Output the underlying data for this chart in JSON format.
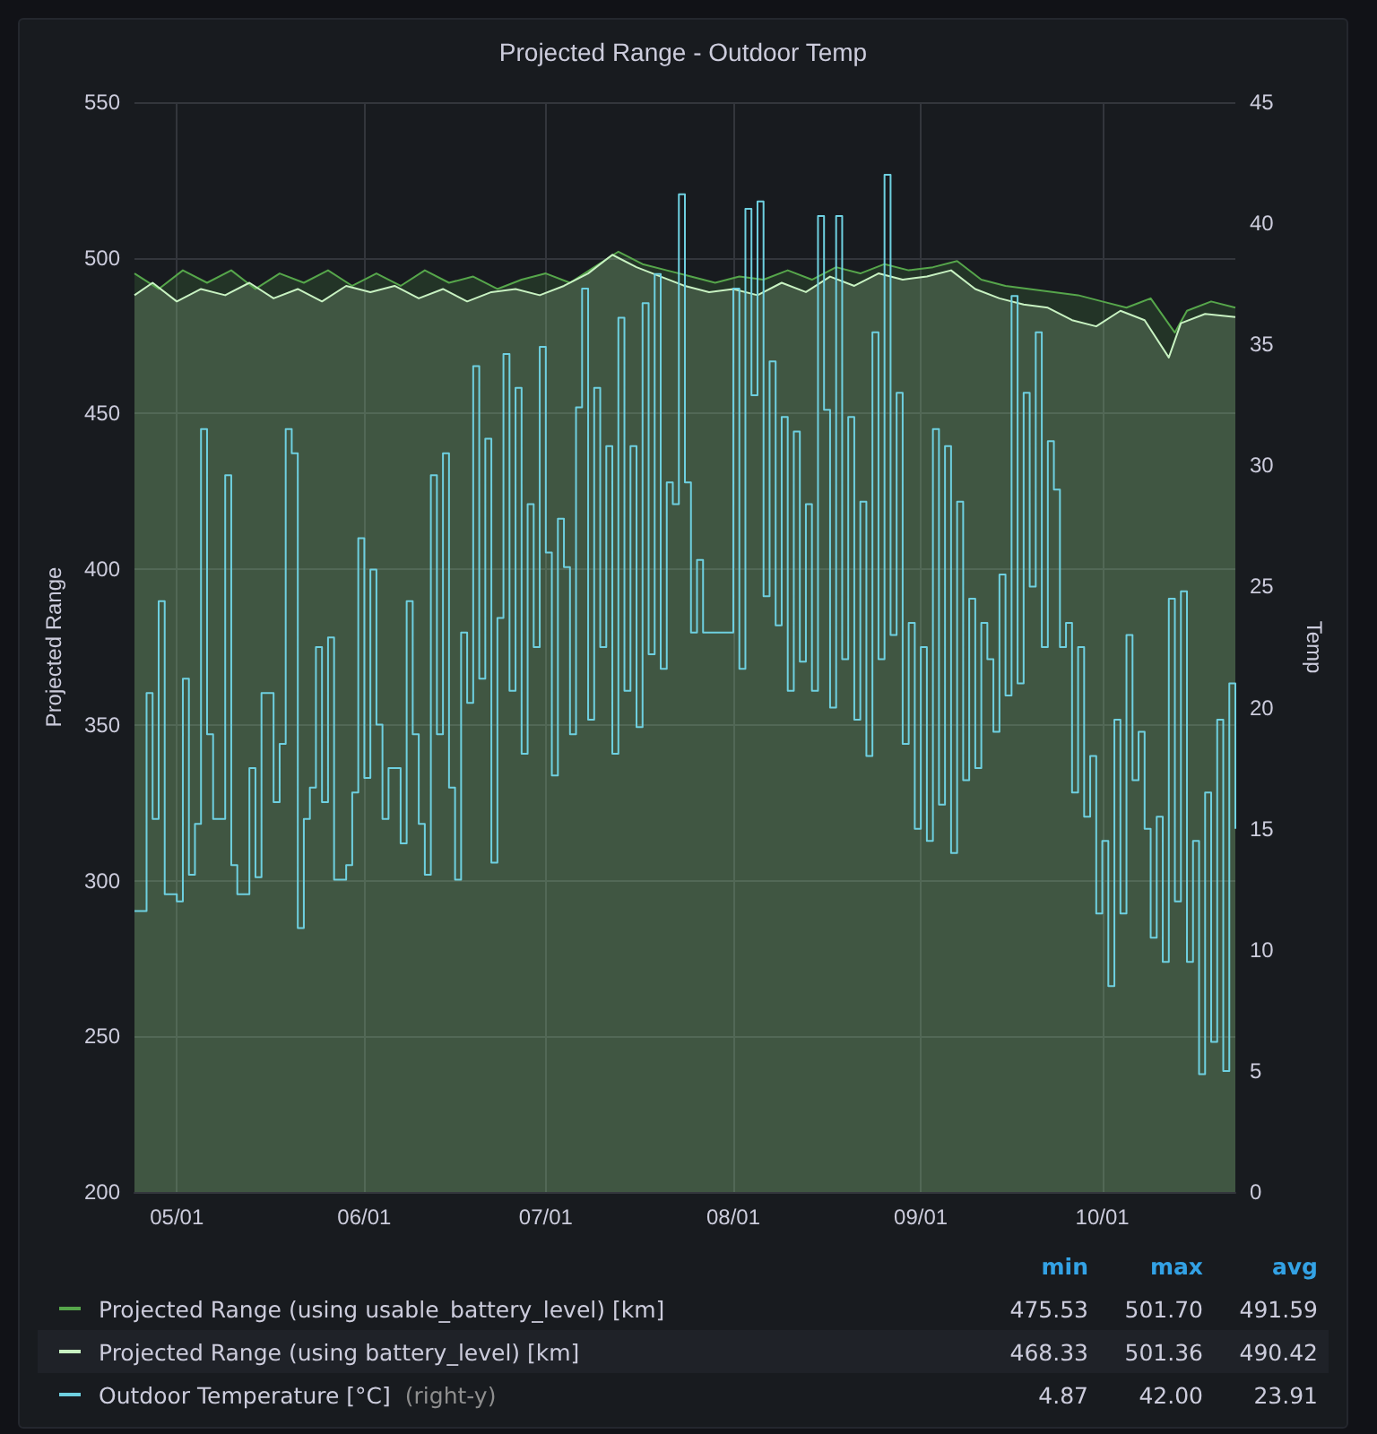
{
  "chart_data": {
    "type": "step",
    "title": "Projected Range - Outdoor Temp",
    "ylabel": "Projected Range",
    "y2label": "Temp",
    "xlim": [
      "--04-24",
      "--10-23"
    ],
    "xticks": [
      {
        "value": "--05-01",
        "label": "05/01"
      },
      {
        "value": "--06-01",
        "label": "06/01"
      },
      {
        "value": "--07-01",
        "label": "07/01"
      },
      {
        "value": "--08-01",
        "label": "08/01"
      },
      {
        "value": "--09-01",
        "label": "09/01"
      },
      {
        "value": "--10-01",
        "label": "10/01"
      }
    ],
    "ylim": [
      200,
      550
    ],
    "yticks": [
      200,
      250,
      300,
      350,
      400,
      450,
      500,
      550
    ],
    "y2lim": [
      0,
      45
    ],
    "y2ticks": [
      0,
      5,
      10,
      15,
      20,
      25,
      30,
      35,
      40,
      45
    ],
    "grid": true,
    "legend": "bottom",
    "annotations": [
      "min",
      "max",
      "avg",
      "475.53",
      "501.70",
      "491.59",
      "468.33",
      "501.36",
      "490.42",
      "4.87",
      "42.00",
      "23.91",
      "(right-y)"
    ],
    "series": [
      {
        "name": "Projected Range (using usable_battery_level) [km]",
        "type": "area",
        "color": "#56a64b",
        "x": [
          "--04-24",
          "--04-28",
          "--05-02",
          "--05-06",
          "--05-10",
          "--05-14",
          "--05-18",
          "--05-22",
          "--05-26",
          "--05-30",
          "--06-03",
          "--06-07",
          "--06-11",
          "--06-15",
          "--06-19",
          "--06-23",
          "--06-27",
          "--07-01",
          "--07-05",
          "--07-09",
          "--07-13",
          "--07-17",
          "--07-21",
          "--07-25",
          "--07-29",
          "--08-02",
          "--08-06",
          "--08-10",
          "--08-14",
          "--08-18",
          "--08-22",
          "--08-26",
          "--08-30",
          "--09-03",
          "--09-07",
          "--09-11",
          "--09-15",
          "--09-19",
          "--09-23",
          "--09-27",
          "--10-01",
          "--10-05",
          "--10-09",
          "--10-13",
          "--10-15",
          "--10-19",
          "--10-23"
        ],
        "values": [
          495,
          490,
          496,
          492,
          496,
          490,
          495,
          492,
          496,
          491,
          495,
          491,
          496,
          492,
          494,
          490,
          493,
          495,
          492,
          497,
          502,
          498,
          496,
          494,
          492,
          494,
          493,
          496,
          493,
          497,
          495,
          498,
          496,
          497,
          499,
          493,
          491,
          490,
          489,
          488,
          486,
          484,
          487,
          476,
          483,
          486,
          484
        ]
      },
      {
        "name": "Projected Range (using battery_level) [km]",
        "type": "area",
        "color": "#c8f2c2",
        "x": [
          "--04-24",
          "--04-27",
          "--05-01",
          "--05-05",
          "--05-09",
          "--05-13",
          "--05-17",
          "--05-21",
          "--05-25",
          "--05-29",
          "--06-02",
          "--06-06",
          "--06-10",
          "--06-14",
          "--06-18",
          "--06-22",
          "--06-26",
          "--06-30",
          "--07-04",
          "--07-08",
          "--07-12",
          "--07-16",
          "--07-20",
          "--07-24",
          "--07-28",
          "--08-01",
          "--08-05",
          "--08-09",
          "--08-13",
          "--08-17",
          "--08-21",
          "--08-25",
          "--08-29",
          "--09-02",
          "--09-06",
          "--09-10",
          "--09-14",
          "--09-18",
          "--09-22",
          "--09-26",
          "--09-30",
          "--10-04",
          "--10-08",
          "--10-12",
          "--10-14",
          "--10-18",
          "--10-23"
        ],
        "values": [
          488,
          492,
          486,
          490,
          488,
          492,
          487,
          490,
          486,
          491,
          489,
          491,
          487,
          490,
          486,
          489,
          490,
          488,
          491,
          495,
          501,
          497,
          494,
          491,
          489,
          490,
          488,
          492,
          489,
          494,
          491,
          495,
          493,
          494,
          496,
          490,
          487,
          485,
          484,
          480,
          478,
          483,
          480,
          468,
          479,
          482,
          481
        ]
      },
      {
        "name": "Outdoor Temperature [°C]",
        "axis": "y2",
        "color": "#6ed0e0",
        "x": [
          "--04-24",
          "--04-26",
          "--04-27",
          "--04-28",
          "--04-29",
          "--05-01",
          "--05-02",
          "--05-03",
          "--05-04",
          "--05-05",
          "--05-06",
          "--05-07",
          "--05-09",
          "--05-10",
          "--05-11",
          "--05-13",
          "--05-14",
          "--05-15",
          "--05-17",
          "--05-18",
          "--05-19",
          "--05-20",
          "--05-21",
          "--05-22",
          "--05-23",
          "--05-24",
          "--05-25",
          "--05-26",
          "--05-27",
          "--05-29",
          "--05-30",
          "--05-31",
          "--06-01",
          "--06-02",
          "--06-03",
          "--06-04",
          "--06-05",
          "--06-07",
          "--06-08",
          "--06-09",
          "--06-10",
          "--06-11",
          "--06-12",
          "--06-13",
          "--06-14",
          "--06-15",
          "--06-16",
          "--06-17",
          "--06-18",
          "--06-19",
          "--06-20",
          "--06-21",
          "--06-22",
          "--06-23",
          "--06-24",
          "--06-25",
          "--06-26",
          "--06-27",
          "--06-28",
          "--06-29",
          "--06-30",
          "--07-01",
          "--07-02",
          "--07-03",
          "--07-04",
          "--07-05",
          "--07-06",
          "--07-07",
          "--07-08",
          "--07-09",
          "--07-10",
          "--07-11",
          "--07-12",
          "--07-13",
          "--07-14",
          "--07-15",
          "--07-16",
          "--07-17",
          "--07-18",
          "--07-19",
          "--07-20",
          "--07-21",
          "--07-22",
          "--07-23",
          "--07-24",
          "--07-25",
          "--07-26",
          "--07-27",
          "--08-01",
          "--08-02",
          "--08-03",
          "--08-04",
          "--08-05",
          "--08-06",
          "--08-07",
          "--08-08",
          "--08-09",
          "--08-10",
          "--08-11",
          "--08-12",
          "--08-13",
          "--08-14",
          "--08-15",
          "--08-16",
          "--08-17",
          "--08-18",
          "--08-19",
          "--08-20",
          "--08-21",
          "--08-22",
          "--08-23",
          "--08-24",
          "--08-25",
          "--08-26",
          "--08-27",
          "--08-28",
          "--08-29",
          "--08-30",
          "--08-31",
          "--09-01",
          "--09-02",
          "--09-03",
          "--09-04",
          "--09-05",
          "--09-06",
          "--09-07",
          "--09-08",
          "--09-09",
          "--09-10",
          "--09-11",
          "--09-12",
          "--09-13",
          "--09-14",
          "--09-15",
          "--09-16",
          "--09-17",
          "--09-18",
          "--09-19",
          "--09-20",
          "--09-21",
          "--09-22",
          "--09-23",
          "--09-24",
          "--09-25",
          "--09-26",
          "--09-27",
          "--09-28",
          "--09-29",
          "--09-30",
          "--10-01",
          "--10-02",
          "--10-03",
          "--10-04",
          "--10-05",
          "--10-06",
          "--10-07",
          "--10-08",
          "--10-09",
          "--10-10",
          "--10-11",
          "--10-12",
          "--10-13",
          "--10-14",
          "--10-15",
          "--10-16",
          "--10-17",
          "--10-18",
          "--10-19",
          "--10-20",
          "--10-21",
          "--10-22",
          "--10-23"
        ],
        "values": [
          11.6,
          20.6,
          15.4,
          24.4,
          12.3,
          12.0,
          21.2,
          13.1,
          15.2,
          31.5,
          18.9,
          15.4,
          29.6,
          13.5,
          12.3,
          17.5,
          13.0,
          20.6,
          16.1,
          18.5,
          31.5,
          30.5,
          10.9,
          15.4,
          16.7,
          22.5,
          16.1,
          22.9,
          12.9,
          13.5,
          16.5,
          27.0,
          17.1,
          25.7,
          19.3,
          15.4,
          17.5,
          14.4,
          24.4,
          18.9,
          15.2,
          13.1,
          29.6,
          18.9,
          30.5,
          16.7,
          12.9,
          23.1,
          20.2,
          34.1,
          21.2,
          31.1,
          13.6,
          23.7,
          34.6,
          20.7,
          33.2,
          18.1,
          28.4,
          22.5,
          34.9,
          26.4,
          17.2,
          27.8,
          25.8,
          18.9,
          32.4,
          37.3,
          19.5,
          33.2,
          22.5,
          30.8,
          18.1,
          36.1,
          20.7,
          30.8,
          19.2,
          36.7,
          22.2,
          37.9,
          21.6,
          29.3,
          28.4,
          41.2,
          29.3,
          23.1,
          26.1,
          23.1,
          37.3,
          21.6,
          40.6,
          32.9,
          40.9,
          24.6,
          34.3,
          23.4,
          32.0,
          20.7,
          31.4,
          21.9,
          28.4,
          20.7,
          40.3,
          32.3,
          20,
          40.3,
          22,
          32,
          19.5,
          28.5,
          18,
          35.5,
          22,
          42.0,
          23,
          33,
          18.5,
          23.5,
          15,
          22.5,
          14.5,
          31.5,
          16,
          30.8,
          14,
          28.5,
          17,
          24.5,
          17.5,
          23.5,
          22,
          19,
          25.5,
          20.5,
          37,
          21,
          33,
          25,
          35.5,
          22.5,
          31,
          29,
          22.5,
          23.5,
          16.5,
          22.5,
          15.5,
          18,
          11.5,
          14.5,
          8.5,
          19.5,
          11.5,
          23,
          17,
          19,
          15,
          10.5,
          15.5,
          9.5,
          24.5,
          12,
          24.8,
          9.5,
          14.5,
          4.87,
          16.5,
          6.2,
          19.5,
          5.0,
          21,
          15
        ]
      }
    ]
  }
}
